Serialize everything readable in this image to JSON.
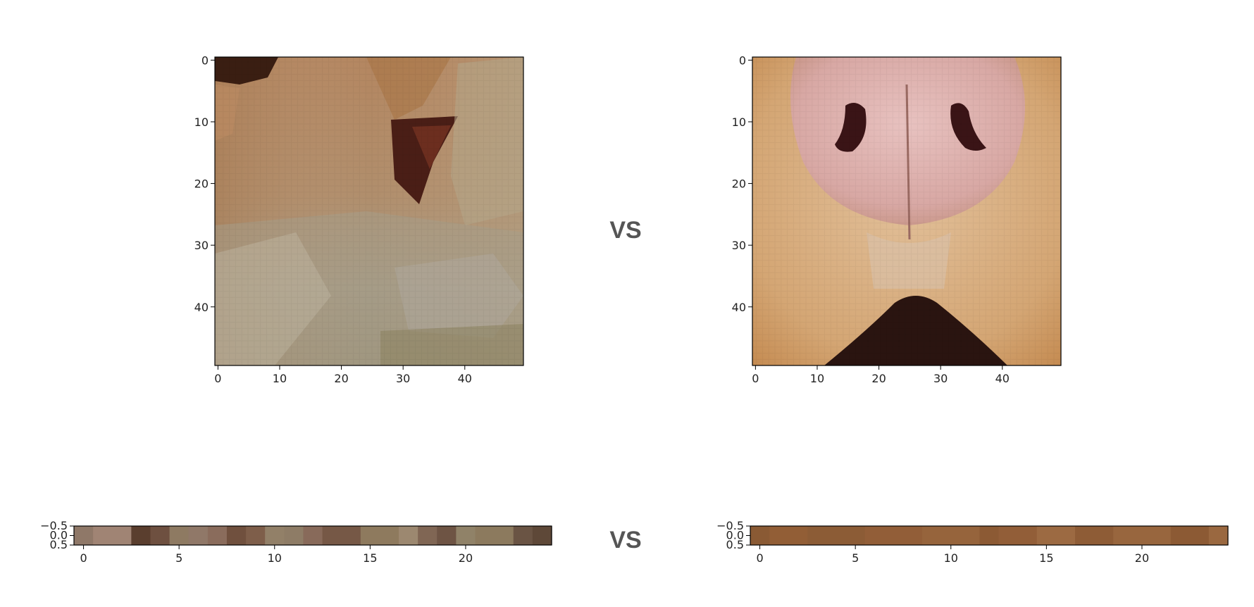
{
  "vs_labels": [
    "VS",
    "VS"
  ],
  "chart_data": [
    {
      "type": "heatmap",
      "content": "image-patch",
      "title": "",
      "xlabel": "",
      "ylabel": "",
      "xlim": [
        -0.5,
        49.5
      ],
      "ylim": [
        49.5,
        -0.5
      ],
      "x_ticks": [
        0,
        10,
        20,
        30,
        40
      ],
      "y_ticks": [
        0,
        10,
        20,
        30,
        40
      ],
      "grid": false
    },
    {
      "type": "heatmap",
      "content": "image-patch",
      "title": "",
      "xlabel": "",
      "ylabel": "",
      "xlim": [
        -0.5,
        49.5
      ],
      "ylim": [
        49.5,
        -0.5
      ],
      "x_ticks": [
        0,
        10,
        20,
        30,
        40
      ],
      "y_ticks": [
        0,
        10,
        20,
        30,
        40
      ],
      "grid": false
    },
    {
      "type": "heatmap",
      "title": "",
      "xlabel": "",
      "ylabel": "",
      "xlim": [
        -0.5,
        24.5
      ],
      "ylim": [
        0.5,
        -0.5
      ],
      "x_ticks": [
        0,
        5,
        10,
        15,
        20
      ],
      "y_ticks": [
        -0.5,
        0.0,
        0.5
      ],
      "y_tick_labels": [
        "−0.5",
        "0.0",
        "0.5"
      ],
      "grid": false,
      "colors": [
        "#8f7868",
        "#a08474",
        "#a08474",
        "#5a3e2e",
        "#6e5040",
        "#8e7a62",
        "#907868",
        "#8a6c5c",
        "#70503e",
        "#7e5e4a",
        "#928068",
        "#8e7c66",
        "#886a5a",
        "#765846",
        "#765846",
        "#8e7a5e",
        "#8e7a5e",
        "#9c8870",
        "#806654",
        "#6e5444",
        "#908268",
        "#8c7a5e",
        "#8c7a5e",
        "#6a5444",
        "#5e4838"
      ]
    },
    {
      "type": "heatmap",
      "title": "",
      "xlabel": "",
      "ylabel": "",
      "xlim": [
        -0.5,
        24.5
      ],
      "ylim": [
        0.5,
        -0.5
      ],
      "x_ticks": [
        0,
        5,
        10,
        15,
        20
      ],
      "y_ticks": [
        -0.5,
        0.0,
        0.5
      ],
      "y_tick_labels": [
        "−0.5",
        "0.0",
        "0.5"
      ],
      "grid": false,
      "colors": [
        "#8a5a34",
        "#925e36",
        "#925e36",
        "#8c5c36",
        "#8c5c36",
        "#8c5c36",
        "#925e38",
        "#925e38",
        "#925e38",
        "#96643c",
        "#96643c",
        "#96643c",
        "#8c5a34",
        "#925e38",
        "#925e38",
        "#9c6a42",
        "#9c6a42",
        "#8e5c36",
        "#8e5c36",
        "#98663e",
        "#98663e",
        "#98663e",
        "#8c5a34",
        "#8c5a34",
        "#9a6840"
      ]
    }
  ]
}
